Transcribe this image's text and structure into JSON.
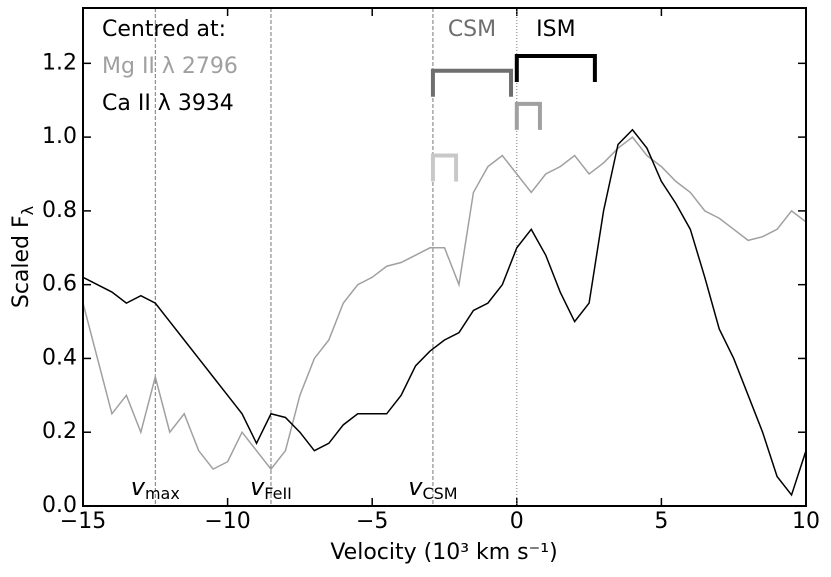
{
  "chart_data": {
    "type": "line",
    "xlabel": "Velocity (10³ km s⁻¹)",
    "ylabel": "Scaled F",
    "ylabel_sub": "λ",
    "legend_title": "Centred at:",
    "legend": "upper left",
    "xlim": [
      -15,
      10
    ],
    "ylim": [
      0,
      1.35
    ],
    "xticks": [
      {
        "value": -15,
        "label": "−15"
      },
      {
        "value": -10,
        "label": "−10"
      },
      {
        "value": -5,
        "label": "−5"
      },
      0,
      5,
      10
    ],
    "yticks": [
      {
        "value": 0,
        "label": "0.0"
      },
      0.2,
      0.4,
      0.6,
      0.8,
      {
        "value": 1,
        "label": "1.0"
      },
      1.2
    ],
    "x": [
      -15,
      -14.5,
      -14,
      -13.5,
      -13,
      -12.5,
      -12,
      -11.5,
      -11,
      -10.5,
      -10,
      -9.5,
      -9,
      -8.5,
      -8,
      -7.5,
      -7,
      -6.5,
      -6,
      -5.5,
      -5,
      -4.5,
      -4,
      -3.5,
      -3,
      -2.5,
      -2,
      -1.5,
      -1,
      -0.5,
      0,
      0.5,
      1,
      1.5,
      2,
      2.5,
      3,
      3.5,
      4,
      4.5,
      5,
      5.5,
      6,
      6.5,
      7,
      7.5,
      8,
      8.5,
      9,
      9.5,
      10
    ],
    "series": [
      {
        "name": "Mg II λ 2796",
        "color": "#a0a0a0",
        "values": [
          0.55,
          0.4,
          0.25,
          0.3,
          0.2,
          0.35,
          0.2,
          0.25,
          0.15,
          0.1,
          0.12,
          0.2,
          0.15,
          0.1,
          0.15,
          0.3,
          0.4,
          0.45,
          0.55,
          0.6,
          0.62,
          0.65,
          0.66,
          0.68,
          0.7,
          0.7,
          0.6,
          0.85,
          0.92,
          0.95,
          0.9,
          0.85,
          0.9,
          0.92,
          0.95,
          0.9,
          0.93,
          0.97,
          1.0,
          0.95,
          0.92,
          0.88,
          0.85,
          0.8,
          0.78,
          0.75,
          0.72,
          0.73,
          0.75,
          0.8,
          0.77
        ]
      },
      {
        "name": "Ca II λ 3934",
        "color": "#000000",
        "values": [
          0.62,
          0.6,
          0.58,
          0.55,
          0.57,
          0.55,
          0.5,
          0.45,
          0.4,
          0.35,
          0.3,
          0.25,
          0.17,
          0.25,
          0.24,
          0.2,
          0.15,
          0.17,
          0.22,
          0.25,
          0.25,
          0.25,
          0.3,
          0.38,
          0.42,
          0.45,
          0.47,
          0.53,
          0.55,
          0.6,
          0.7,
          0.75,
          0.68,
          0.58,
          0.5,
          0.55,
          0.8,
          0.98,
          1.02,
          0.97,
          0.88,
          0.82,
          0.75,
          0.62,
          0.48,
          0.4,
          0.3,
          0.2,
          0.08,
          0.03,
          0.15
        ]
      }
    ],
    "vlines": [
      {
        "x": -12.5,
        "label": "v",
        "sub": "max"
      },
      {
        "x": -8.5,
        "label": "v",
        "sub": "FeII"
      },
      {
        "x": -2.9,
        "label": "v",
        "sub": "CSM"
      },
      {
        "x": 0
      }
    ],
    "brackets": [
      {
        "x0": -2.9,
        "x1": -0.2,
        "y": 1.18,
        "color": "#6e6e6e",
        "label": "CSM"
      },
      {
        "x0": 0,
        "x1": 2.7,
        "y": 1.22,
        "color": "#000000",
        "label": "ISM"
      },
      {
        "x0": 0,
        "x1": 0.8,
        "y": 1.09,
        "color": "#a0a0a0"
      },
      {
        "x0": -2.9,
        "x1": -2.1,
        "y": 0.95,
        "color": "#c8c8c8"
      }
    ]
  }
}
